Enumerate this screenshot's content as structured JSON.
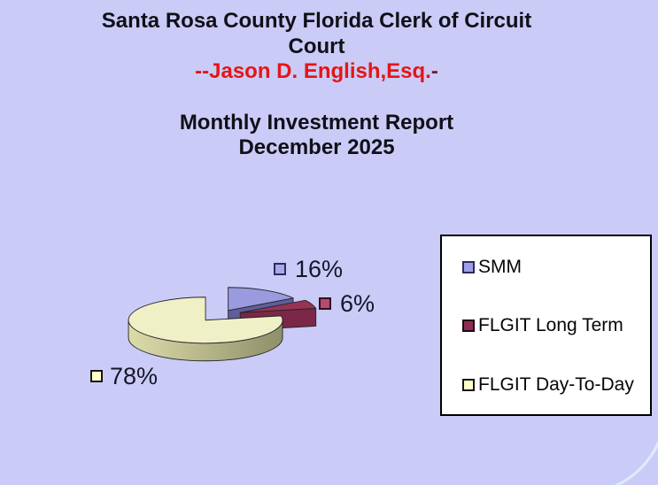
{
  "page": {
    "background": "#cbcbf7"
  },
  "title": {
    "line1": "Santa Rosa County Florida Clerk of Circuit",
    "line2": "Court",
    "attribution_prefix": "--",
    "attribution_name": "Jason D. English,Esq.",
    "attribution_suffix": "-",
    "report": "Monthly Investment Report",
    "period": "December 2025"
  },
  "chart_data": {
    "type": "pie",
    "title": "Monthly Investment Report December 2025",
    "categories": [
      "SMM",
      "FLGIT Long Term",
      "FLGIT Day-To-Day"
    ],
    "values": [
      16,
      6,
      78
    ],
    "labels": [
      "16%",
      "6%",
      "78%"
    ],
    "unit": "percent",
    "style": "3d-exploded-pie",
    "start_angle_deg": 0,
    "direction": "clockwise",
    "legend_position": "right",
    "colors_top": [
      "#9a9adf",
      "#993355",
      "#f0f0c6"
    ],
    "colors_side": [
      "#5e5e99",
      "#7c2747",
      [
        "#dcdcaa",
        "#8f8f69"
      ]
    ]
  },
  "data_labels": [
    {
      "marker_fill": "#a9a9e9",
      "marker_border": "#2b2b60"
    },
    {
      "marker_fill": "#b14c72",
      "marker_border": "#380c1f"
    },
    {
      "marker_fill": "#ffffcc",
      "marker_border": "#161616"
    }
  ],
  "legend": {
    "items": [
      {
        "label": "SMM",
        "marker_fill": "#9f9fe6",
        "marker_border": "#2b2b60"
      },
      {
        "label": "FLGIT Long Term",
        "marker_fill": "#8e2d53",
        "marker_border": "#1d0713"
      },
      {
        "label": "FLGIT Day-To-Day",
        "marker_fill": "#ffffcc",
        "marker_border": "#161616"
      }
    ]
  },
  "colors": {
    "background": "#cbcbf7",
    "title_text": "#101018",
    "title_red": "#e41616",
    "title_red_dark_suffix": "#7d1b2e",
    "label_text": "#15152b",
    "legend_bg": "#ffffff",
    "legend_border": "#000000"
  }
}
